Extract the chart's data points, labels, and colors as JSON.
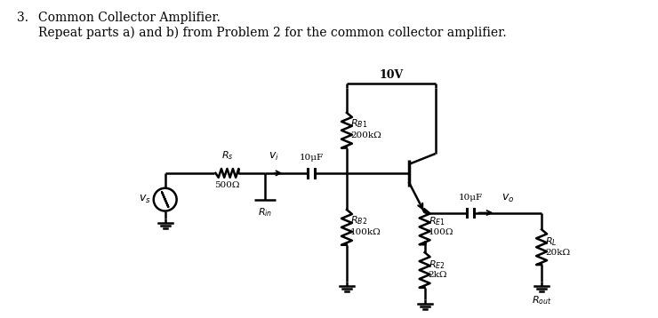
{
  "title_number": "3.",
  "title_line1": "Common Collector Amplifier.",
  "title_line2": "Repeat parts a) and b) from Problem 2 for the common collector amplifier.",
  "bg_color": "#ffffff",
  "line_color": "#000000",
  "text_color": "#000000",
  "figsize": [
    7.4,
    3.58
  ],
  "dpi": 100,
  "labels": {
    "VCC": "10V",
    "RB1_val": "200kΩ",
    "RB2_val": "100kΩ",
    "RE1_val": "100Ω",
    "RE2_val": "2kΩ",
    "RL_val": "20kΩ",
    "RS_val": "500Ω",
    "C1": "10μF",
    "C2": "10μF"
  }
}
